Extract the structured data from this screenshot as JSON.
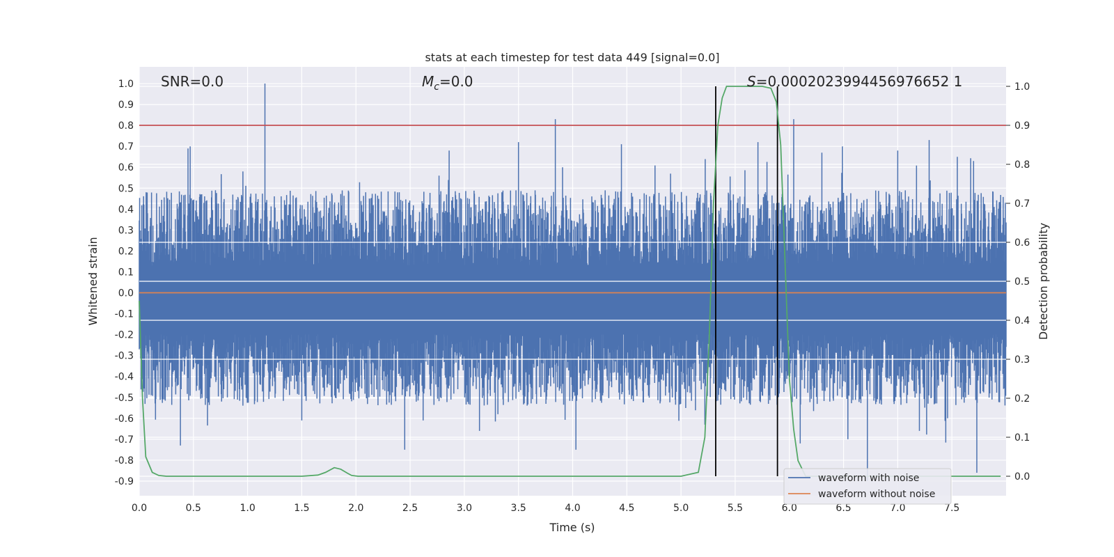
{
  "chart_data": {
    "type": "line",
    "title": "stats at each timestep for test data 449 [signal=0.0]",
    "xlabel": "Time (s)",
    "ylabel": "Whitened strain",
    "y2label": "Detection probability",
    "xlim": [
      0.0,
      8.0
    ],
    "ylim": [
      -0.97,
      1.08
    ],
    "y2lim": [
      -0.05,
      1.05
    ],
    "xticks": [
      "0.0",
      "0.5",
      "1.0",
      "1.5",
      "2.0",
      "2.5",
      "3.0",
      "3.5",
      "4.0",
      "4.5",
      "5.0",
      "5.5",
      "6.0",
      "6.5",
      "7.0",
      "7.5"
    ],
    "yticks": [
      "-0.9",
      "-0.8",
      "-0.7",
      "-0.6",
      "-0.5",
      "-0.4",
      "-0.3",
      "-0.2",
      "-0.1",
      "0.0",
      "0.1",
      "0.2",
      "0.3",
      "0.4",
      "0.5",
      "0.6",
      "0.7",
      "0.8",
      "0.9",
      "1.0"
    ],
    "y2ticks": [
      "0.0",
      "0.1",
      "0.2",
      "0.3",
      "0.4",
      "0.5",
      "0.6",
      "0.7",
      "0.8",
      "0.9",
      "1.0"
    ],
    "annotations": {
      "snr": "SNR=0.0",
      "mc_symbol": "M",
      "mc_subscript": "c",
      "mc_value": "=0.0",
      "s_symbol": "S",
      "s_value": "=0.0002023994456976652 1"
    },
    "threshold_line": {
      "axis": "y2",
      "value": 0.9,
      "color": "#c44e52"
    },
    "vertical_lines": [
      5.32,
      5.89
    ],
    "series": [
      {
        "name": "waveform with noise",
        "color": "#4c72b0",
        "axis": "y",
        "envelope": {
          "center": -0.03,
          "typical_upper": 0.33,
          "typical_lower": -0.38
        },
        "peaks": [
          {
            "x": 1.16,
            "y": 1.0
          },
          {
            "x": 3.84,
            "y": 0.83
          },
          {
            "x": 6.04,
            "y": 0.83
          },
          {
            "x": 0.45,
            "y": 0.69
          },
          {
            "x": 0.47,
            "y": 0.7
          },
          {
            "x": 2.86,
            "y": 0.68
          },
          {
            "x": 3.5,
            "y": 0.72
          },
          {
            "x": 4.45,
            "y": 0.71
          },
          {
            "x": 5.71,
            "y": 0.72
          },
          {
            "x": 7.55,
            "y": 0.65
          },
          {
            "x": 6.49,
            "y": 0.7
          },
          {
            "x": 7.29,
            "y": 0.73
          },
          {
            "x": 6.3,
            "y": 0.67
          },
          {
            "x": 7.0,
            "y": 0.68
          },
          {
            "x": 7.7,
            "y": 0.63
          }
        ],
        "troughs": [
          {
            "x": 0.38,
            "y": -0.73
          },
          {
            "x": 2.45,
            "y": -0.75
          },
          {
            "x": 3.14,
            "y": -0.66
          },
          {
            "x": 4.03,
            "y": -0.75
          },
          {
            "x": 6.72,
            "y": -0.9
          },
          {
            "x": 7.73,
            "y": -0.86
          },
          {
            "x": 6.54,
            "y": -0.7
          },
          {
            "x": 6.1,
            "y": -0.72
          },
          {
            "x": 1.5,
            "y": -0.61
          },
          {
            "x": 2.62,
            "y": -0.61
          },
          {
            "x": 5.22,
            "y": -0.63
          },
          {
            "x": 7.2,
            "y": -0.66
          }
        ]
      },
      {
        "name": "waveform without noise",
        "color": "#dd8452",
        "axis": "y",
        "x": [
          0.0,
          8.0
        ],
        "y": [
          0.0,
          0.0
        ]
      },
      {
        "name": "detection probability",
        "color": "#55a868",
        "axis": "y2",
        "x": [
          0.0,
          0.03,
          0.06,
          0.12,
          0.18,
          0.25,
          0.4,
          0.8,
          1.2,
          1.5,
          1.65,
          1.72,
          1.8,
          1.86,
          1.92,
          1.96,
          2.02,
          2.2,
          3.0,
          4.0,
          5.0,
          5.16,
          5.22,
          5.26,
          5.3,
          5.34,
          5.38,
          5.42,
          5.48,
          5.6,
          5.75,
          5.83,
          5.88,
          5.92,
          5.96,
          6.0,
          6.04,
          6.08,
          6.15,
          6.3,
          7.0,
          7.95
        ],
        "y": [
          0.45,
          0.2,
          0.05,
          0.01,
          0.002,
          0.0,
          0.0,
          0.0,
          0.0,
          0.0,
          0.003,
          0.01,
          0.022,
          0.018,
          0.008,
          0.002,
          0.0,
          0.0,
          0.0,
          0.0,
          0.0,
          0.01,
          0.1,
          0.35,
          0.7,
          0.9,
          0.97,
          1.0,
          1.0,
          1.0,
          1.0,
          0.995,
          0.96,
          0.85,
          0.55,
          0.25,
          0.12,
          0.04,
          0.0,
          0.0,
          0.0,
          0.0
        ]
      }
    ],
    "legend": {
      "position": "lower-right",
      "entries": [
        {
          "label": "waveform with noise",
          "color": "#4c72b0"
        },
        {
          "label": "waveform without noise",
          "color": "#dd8452"
        }
      ]
    }
  }
}
